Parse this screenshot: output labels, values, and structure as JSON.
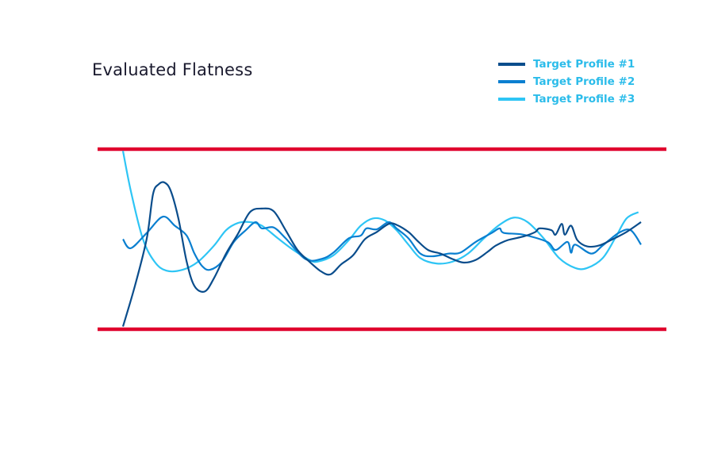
{
  "chart_data": {
    "type": "line",
    "title": "Evaluated Flatness",
    "xlabel": "",
    "ylabel": "",
    "xlim": [
      0,
      100
    ],
    "ylim": [
      -1,
      1
    ],
    "grid": false,
    "legend_position": "top-right",
    "limit_lines": [
      {
        "y": 1,
        "color": "#e0002d"
      },
      {
        "y": -1,
        "color": "#e0002d"
      }
    ],
    "series": [
      {
        "name": "Target Profile #1",
        "color": "#0a4d8c",
        "points": [
          [
            0,
            -0.97
          ],
          [
            2.3,
            -0.52
          ],
          [
            4.6,
            0.01
          ],
          [
            5.8,
            0.5
          ],
          [
            6.9,
            0.61
          ],
          [
            8.0,
            0.63
          ],
          [
            9.2,
            0.54
          ],
          [
            10.7,
            0.23
          ],
          [
            12.3,
            -0.25
          ],
          [
            13.8,
            -0.52
          ],
          [
            15.8,
            -0.58
          ],
          [
            17.6,
            -0.43
          ],
          [
            19.9,
            -0.16
          ],
          [
            22.2,
            0.06
          ],
          [
            24.5,
            0.3
          ],
          [
            26.8,
            0.34
          ],
          [
            29.1,
            0.31
          ],
          [
            31.4,
            0.1
          ],
          [
            33.7,
            -0.12
          ],
          [
            36.0,
            -0.25
          ],
          [
            38.3,
            -0.36
          ],
          [
            40.1,
            -0.39
          ],
          [
            42.1,
            -0.28
          ],
          [
            44.4,
            -0.18
          ],
          [
            46.7,
            0.0
          ],
          [
            49.0,
            0.08
          ],
          [
            51.3,
            0.17
          ],
          [
            52.8,
            0.16
          ],
          [
            55.1,
            0.08
          ],
          [
            56.7,
            -0.01
          ],
          [
            58.9,
            -0.12
          ],
          [
            61.3,
            -0.16
          ],
          [
            63.6,
            -0.22
          ],
          [
            65.8,
            -0.26
          ],
          [
            68.1,
            -0.23
          ],
          [
            70.4,
            -0.14
          ],
          [
            72.0,
            -0.07
          ],
          [
            74.3,
            -0.01
          ],
          [
            77.3,
            0.03
          ],
          [
            79.6,
            0.08
          ],
          [
            80.4,
            0.12
          ],
          [
            82.7,
            0.1
          ],
          [
            83.5,
            0.05
          ],
          [
            84.7,
            0.17
          ],
          [
            85.3,
            0.05
          ],
          [
            86.5,
            0.15
          ],
          [
            87.7,
            -0.01
          ],
          [
            89.6,
            -0.08
          ],
          [
            91.9,
            -0.07
          ],
          [
            94.2,
            -0.01
          ],
          [
            97.2,
            0.08
          ],
          [
            100,
            0.19
          ]
        ]
      },
      {
        "name": "Target Profile #2",
        "color": "#0a7fd0",
        "points": [
          [
            0,
            0.0
          ],
          [
            1.5,
            -0.1
          ],
          [
            4.6,
            0.07
          ],
          [
            7.7,
            0.25
          ],
          [
            10.0,
            0.15
          ],
          [
            12.3,
            0.04
          ],
          [
            13.8,
            -0.16
          ],
          [
            15.3,
            -0.3
          ],
          [
            16.8,
            -0.34
          ],
          [
            19.1,
            -0.25
          ],
          [
            21.4,
            -0.03
          ],
          [
            23.7,
            0.1
          ],
          [
            25.6,
            0.19
          ],
          [
            26.8,
            0.12
          ],
          [
            29.1,
            0.13
          ],
          [
            31.4,
            0.01
          ],
          [
            35.2,
            -0.22
          ],
          [
            38.3,
            -0.22
          ],
          [
            40.6,
            -0.15
          ],
          [
            43.6,
            0.01
          ],
          [
            45.9,
            0.04
          ],
          [
            47.0,
            0.12
          ],
          [
            49.0,
            0.11
          ],
          [
            51.3,
            0.19
          ],
          [
            52.8,
            0.12
          ],
          [
            55.1,
            0.01
          ],
          [
            57.4,
            -0.16
          ],
          [
            59.7,
            -0.19
          ],
          [
            62.8,
            -0.16
          ],
          [
            65.1,
            -0.15
          ],
          [
            68.1,
            -0.03
          ],
          [
            71.2,
            0.07
          ],
          [
            72.7,
            0.12
          ],
          [
            73.5,
            0.07
          ],
          [
            77.3,
            0.05
          ],
          [
            81.9,
            -0.03
          ],
          [
            83.5,
            -0.12
          ],
          [
            85.8,
            -0.03
          ],
          [
            86.5,
            -0.15
          ],
          [
            87.3,
            -0.06
          ],
          [
            90.4,
            -0.16
          ],
          [
            92.6,
            -0.07
          ],
          [
            95.7,
            0.07
          ],
          [
            98.0,
            0.1
          ],
          [
            100,
            -0.06
          ]
        ]
      },
      {
        "name": "Target Profile #3",
        "color": "#2ec5f5",
        "points": [
          [
            0,
            0.98
          ],
          [
            1.5,
            0.54
          ],
          [
            3.8,
            0.01
          ],
          [
            6.1,
            -0.25
          ],
          [
            8.4,
            -0.35
          ],
          [
            11.5,
            -0.34
          ],
          [
            14.5,
            -0.25
          ],
          [
            17.6,
            -0.07
          ],
          [
            19.9,
            0.1
          ],
          [
            22.2,
            0.18
          ],
          [
            24.5,
            0.19
          ],
          [
            26.8,
            0.15
          ],
          [
            29.9,
            0.01
          ],
          [
            32.9,
            -0.12
          ],
          [
            36.0,
            -0.23
          ],
          [
            37.5,
            -0.25
          ],
          [
            40.6,
            -0.18
          ],
          [
            43.6,
            -0.01
          ],
          [
            45.9,
            0.15
          ],
          [
            48.2,
            0.23
          ],
          [
            50.5,
            0.21
          ],
          [
            52.8,
            0.1
          ],
          [
            55.1,
            -0.06
          ],
          [
            57.4,
            -0.21
          ],
          [
            60.5,
            -0.27
          ],
          [
            63.6,
            -0.25
          ],
          [
            66.6,
            -0.16
          ],
          [
            69.7,
            0.01
          ],
          [
            72.7,
            0.16
          ],
          [
            75.5,
            0.24
          ],
          [
            78.1,
            0.19
          ],
          [
            81.2,
            0.01
          ],
          [
            84.2,
            -0.21
          ],
          [
            87.3,
            -0.32
          ],
          [
            89.6,
            -0.32
          ],
          [
            92.6,
            -0.21
          ],
          [
            95.0,
            0.01
          ],
          [
            97.2,
            0.23
          ],
          [
            99.5,
            0.3
          ]
        ]
      }
    ]
  }
}
